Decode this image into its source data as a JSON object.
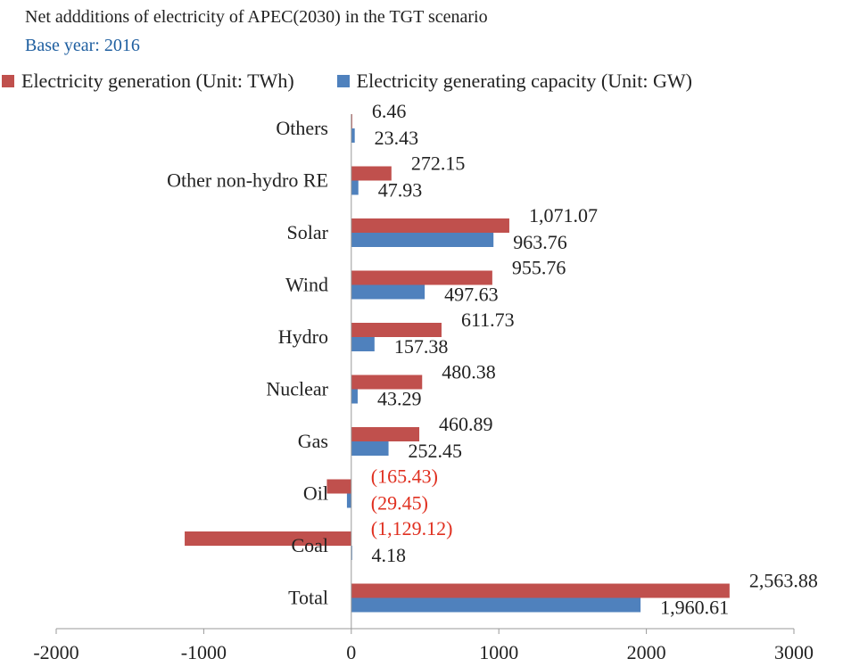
{
  "chart_data": {
    "type": "bar",
    "orientation": "horizontal",
    "title": "Net addditions of electricity of APEC(2030) in the TGT scenario",
    "subtitle": "Base year: 2016",
    "categories": [
      "Others",
      "Other non-hydro RE",
      "Solar",
      "Wind",
      "Hydro",
      "Nuclear",
      "Gas",
      "Oil",
      "Coal",
      "Total"
    ],
    "series": [
      {
        "name": "Electricity generation (Unit: TWh)",
        "color": "#c0504d",
        "values": [
          6.46,
          272.15,
          1071.07,
          955.76,
          611.73,
          480.38,
          460.89,
          -165.43,
          -1129.12,
          2563.88
        ],
        "labels": [
          "6.46",
          "272.15",
          "1,071.07",
          "955.76",
          "611.73",
          "480.38",
          "460.89",
          "(165.43)",
          "(1,129.12)",
          "2,563.88"
        ]
      },
      {
        "name": "Electricity generating capacity (Unit: GW)",
        "color": "#4f81bd",
        "values": [
          23.43,
          47.93,
          963.76,
          497.63,
          157.38,
          43.29,
          252.45,
          -29.45,
          4.18,
          1960.61
        ],
        "labels": [
          "23.43",
          "47.93",
          "963.76",
          "497.63",
          "157.38",
          "43.29",
          "252.45",
          "(29.45)",
          "4.18",
          "1,960.61"
        ]
      }
    ],
    "xlim": [
      -2000,
      3000
    ],
    "xticks": [
      "-2000",
      "-1000",
      "0",
      "1000",
      "2000",
      "3000"
    ],
    "xtick_values": [
      -2000,
      -1000,
      0,
      1000,
      2000,
      3000
    ],
    "grid": false,
    "legend_position": "top",
    "negative_label_color": "#e03020",
    "subtitle_color": "#1f5fa0"
  }
}
